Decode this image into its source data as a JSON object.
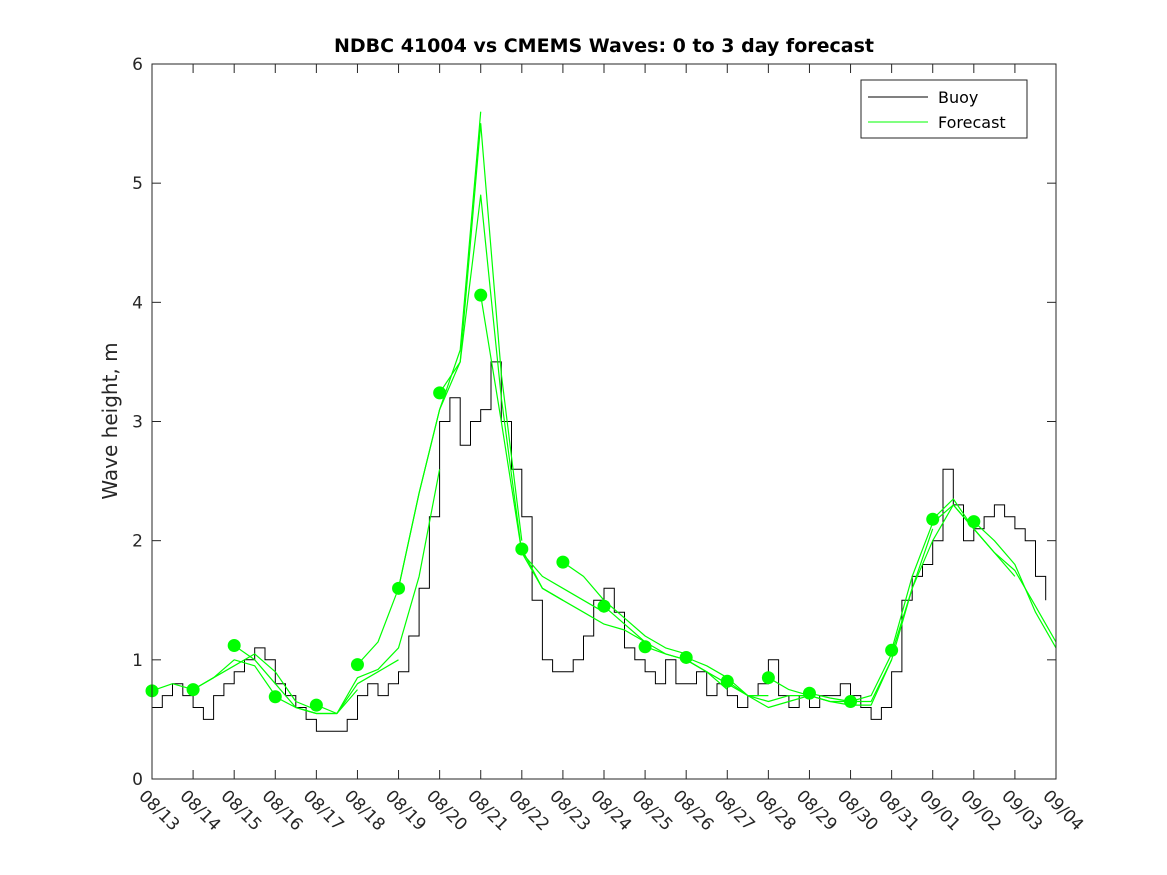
{
  "chart_data": {
    "type": "line",
    "title": "NDBC 41004 vs CMEMS Waves: 0 to 3 day forecast",
    "xlabel": "",
    "ylabel": "Wave height, m",
    "ylim": [
      0,
      6
    ],
    "xlim_days": [
      0,
      22
    ],
    "yticks": [
      "0",
      "1",
      "2",
      "3",
      "4",
      "5",
      "6"
    ],
    "xtick_labels": [
      "08/13",
      "08/14",
      "08/15",
      "08/16",
      "08/17",
      "08/18",
      "08/19",
      "08/20",
      "08/21",
      "08/22",
      "08/23",
      "08/24",
      "08/25",
      "08/26",
      "08/27",
      "08/28",
      "08/29",
      "08/30",
      "08/31",
      "09/01",
      "09/02",
      "09/03",
      "09/04"
    ],
    "grid": false,
    "legend": {
      "placement": "top-right",
      "entries": [
        "Buoy",
        "Forecast"
      ]
    },
    "colors": {
      "buoy": "#000000",
      "forecast": "#00ff00"
    },
    "buoy": {
      "name": "Buoy",
      "step_days": 0.25,
      "values": [
        0.6,
        0.7,
        0.8,
        0.7,
        0.6,
        0.5,
        0.7,
        0.8,
        0.9,
        1.0,
        1.1,
        1.0,
        0.8,
        0.7,
        0.6,
        0.5,
        0.4,
        0.4,
        0.4,
        0.5,
        0.7,
        0.8,
        0.7,
        0.8,
        0.9,
        1.2,
        1.6,
        2.2,
        3.0,
        3.2,
        2.8,
        3.0,
        3.1,
        3.5,
        3.0,
        2.6,
        2.2,
        1.5,
        1.0,
        0.9,
        0.9,
        1.0,
        1.2,
        1.5,
        1.6,
        1.4,
        1.1,
        1.0,
        0.9,
        0.8,
        1.0,
        0.8,
        0.8,
        0.9,
        0.7,
        0.8,
        0.7,
        0.6,
        0.7,
        0.8,
        1.0,
        0.7,
        0.6,
        0.7,
        0.6,
        0.7,
        0.7,
        0.8,
        0.7,
        0.6,
        0.5,
        0.6,
        0.9,
        1.5,
        1.7,
        1.8,
        2.0,
        2.6,
        2.3,
        2.0,
        2.1,
        2.2,
        2.3,
        2.2,
        2.1,
        2.0,
        1.7,
        1.5
      ]
    },
    "forecast": {
      "name": "Forecast",
      "step_days": 0.5,
      "runs": [
        {
          "start": 0,
          "values": [
            0.74,
            0.8,
            0.75,
            0.85,
            1.0,
            0.95,
            0.7
          ]
        },
        {
          "start": 1,
          "values": [
            0.75,
            0.85,
            0.95,
            1.05,
            0.9,
            0.65,
            0.58
          ]
        },
        {
          "start": 2,
          "values": [
            1.12,
            1.0,
            0.8,
            0.6,
            0.55,
            0.55,
            0.75
          ]
        },
        {
          "start": 3,
          "values": [
            0.69,
            0.6,
            0.55,
            0.55,
            0.8,
            0.9,
            1.0
          ]
        },
        {
          "start": 4,
          "values": [
            0.62,
            0.55,
            0.85,
            0.92,
            1.1,
            1.7,
            2.6
          ]
        },
        {
          "start": 5,
          "values": [
            0.96,
            1.15,
            1.6,
            2.4,
            3.1,
            3.6,
            5.6
          ]
        },
        {
          "start": 6,
          "values": [
            1.6,
            2.4,
            3.1,
            3.5,
            5.5,
            3.4,
            2.0
          ]
        },
        {
          "start": 7,
          "values": [
            3.24,
            3.5,
            4.9,
            3.2,
            1.9,
            1.6,
            1.5
          ]
        },
        {
          "start": 8,
          "values": [
            4.06,
            3.0,
            1.9,
            1.7,
            1.6,
            1.5,
            1.4
          ]
        },
        {
          "start": 9,
          "values": [
            1.93,
            1.6,
            1.5,
            1.4,
            1.3,
            1.25,
            1.15
          ]
        },
        {
          "start": 10,
          "values": [
            1.82,
            1.7,
            1.5,
            1.35,
            1.2,
            1.1,
            1.05
          ]
        },
        {
          "start": 11,
          "values": [
            1.45,
            1.3,
            1.15,
            1.05,
            1.0,
            0.9,
            0.75
          ]
        },
        {
          "start": 12,
          "values": [
            1.11,
            1.05,
            1.0,
            0.9,
            0.8,
            0.7,
            0.7
          ]
        },
        {
          "start": 13,
          "values": [
            1.02,
            0.95,
            0.85,
            0.7,
            0.65,
            0.7,
            0.7
          ]
        },
        {
          "start": 14,
          "values": [
            0.82,
            0.7,
            0.6,
            0.65,
            0.7,
            0.65,
            0.65
          ]
        },
        {
          "start": 15,
          "values": [
            0.85,
            0.75,
            0.7,
            0.65,
            0.62,
            0.62,
            1.0
          ]
        },
        {
          "start": 16,
          "values": [
            0.72,
            0.68,
            0.65,
            0.65,
            1.0,
            1.6,
            2.1
          ]
        },
        {
          "start": 17,
          "values": [
            0.65,
            0.7,
            1.05,
            1.6,
            2.0,
            2.3,
            2.1
          ]
        },
        {
          "start": 18,
          "values": [
            1.08,
            1.7,
            2.15,
            2.3,
            2.1,
            1.9,
            1.7
          ]
        },
        {
          "start": 19,
          "values": [
            2.18,
            2.35,
            2.1,
            1.9,
            1.75,
            1.45,
            1.15
          ]
        },
        {
          "start": 20,
          "values": [
            2.16,
            2.0,
            1.8,
            1.4,
            1.1
          ]
        }
      ]
    },
    "analysis_points": {
      "days": [
        0,
        1,
        2,
        3,
        4,
        5,
        6,
        7,
        8,
        9,
        10,
        11,
        12,
        13,
        14,
        15,
        16,
        17,
        18,
        19,
        20
      ],
      "values": [
        0.74,
        0.75,
        1.12,
        0.69,
        0.62,
        0.96,
        1.6,
        3.24,
        4.06,
        1.93,
        1.82,
        1.45,
        1.11,
        1.02,
        0.82,
        0.85,
        0.72,
        0.65,
        1.08,
        2.18,
        2.16
      ]
    }
  }
}
